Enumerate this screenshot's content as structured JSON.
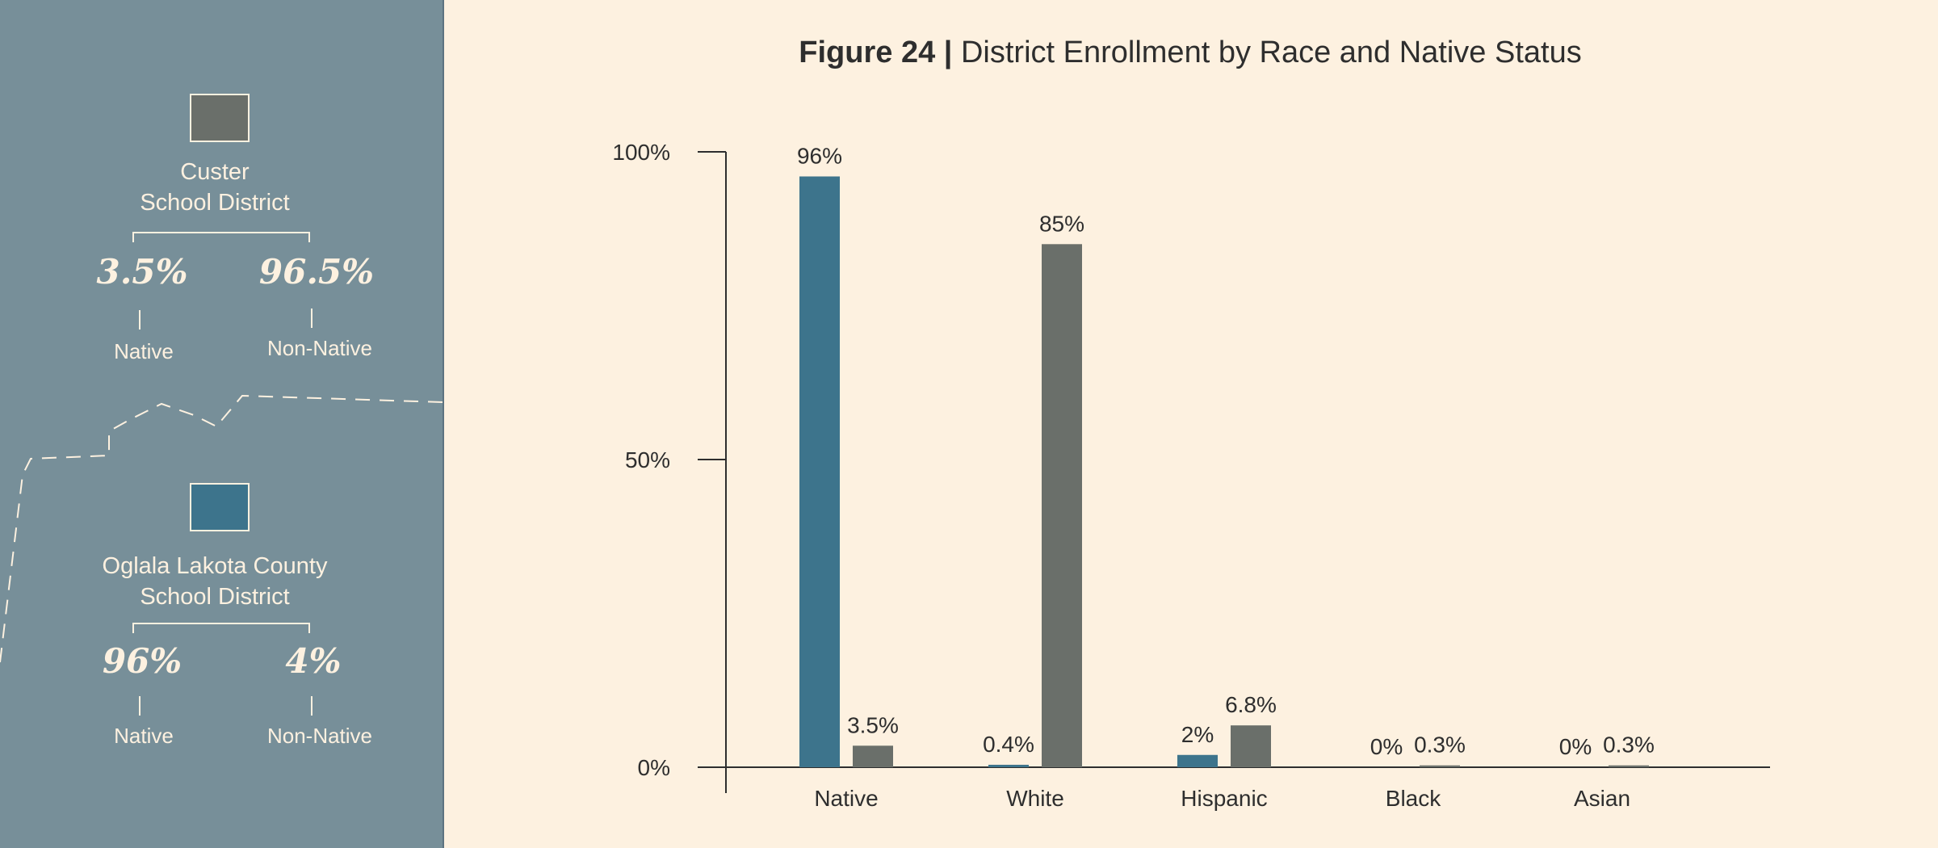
{
  "colors": {
    "sidebar_bg": "#778f99",
    "page_bg": "#fdf1e0",
    "oglala": "#3d748c",
    "custer": "#6a6f6a"
  },
  "legend": {
    "custer": {
      "name_line1": "Custer",
      "name_line2": "School District",
      "native_pct": "3.5%",
      "non_native_pct": "96.5%",
      "native_label": "Native",
      "non_native_label": "Non-Native"
    },
    "oglala": {
      "name_line1": "Oglala Lakota County",
      "name_line2": "School District",
      "native_pct": "96%",
      "non_native_pct": "4%",
      "native_label": "Native",
      "non_native_label": "Non-Native"
    }
  },
  "chart_data": {
    "type": "bar",
    "title_bold": "Figure 24 |",
    "title_rest": "District Enrollment by Race and Native Status",
    "categories": [
      "Native",
      "White",
      "Hispanic",
      "Black",
      "Asian"
    ],
    "series": [
      {
        "name": "Oglala Lakota County School District",
        "color": "#3d748c",
        "values": [
          96,
          0.4,
          2,
          0,
          0
        ],
        "labels": [
          "96%",
          "0.4%",
          "2%",
          "0%",
          "0%"
        ]
      },
      {
        "name": "Custer School District",
        "color": "#6a6f6a",
        "values": [
          3.5,
          85,
          6.8,
          0.3,
          0.3
        ],
        "labels": [
          "3.5%",
          "85%",
          "6.8%",
          "0.3%",
          "0.3%"
        ]
      }
    ],
    "yticks": [
      0,
      50,
      100
    ],
    "ytick_labels": [
      "0%",
      "50%",
      "100%"
    ],
    "ylim": [
      0,
      100
    ],
    "xlabel": "",
    "ylabel": ""
  }
}
